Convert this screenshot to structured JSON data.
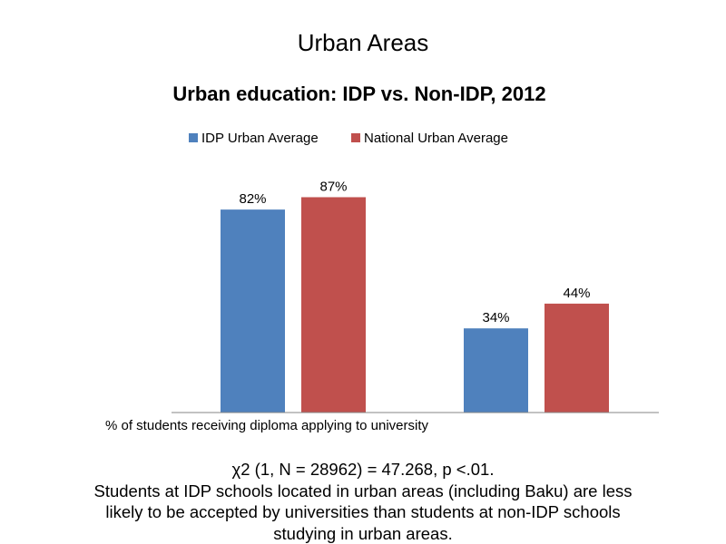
{
  "slide": {
    "title": "Urban Areas",
    "caption_lines": [
      "χ2 (1, N = 28962) = 47.268, p <.01.",
      "Students at IDP schools located in urban areas (including Baku) are less",
      "likely to be accepted by universities than students at non-IDP schools",
      "studying in urban areas."
    ]
  },
  "chart_data": {
    "type": "bar",
    "title": "Urban education: IDP vs. Non-IDP, 2012",
    "xlabel": "",
    "ylabel": "",
    "categories": [
      "% of students receiving diploma applying to university",
      ""
    ],
    "series": [
      {
        "name": "IDP Urban Average",
        "color": "#4F81BD",
        "values": [
          82,
          34
        ],
        "labels": [
          "82%",
          "34%"
        ]
      },
      {
        "name": "National Urban Average",
        "color": "#C0504D",
        "values": [
          87,
          44
        ],
        "labels": [
          "87%",
          "44%"
        ]
      }
    ],
    "ylim": [
      0,
      100
    ],
    "grid": false,
    "legend_position": "top"
  }
}
